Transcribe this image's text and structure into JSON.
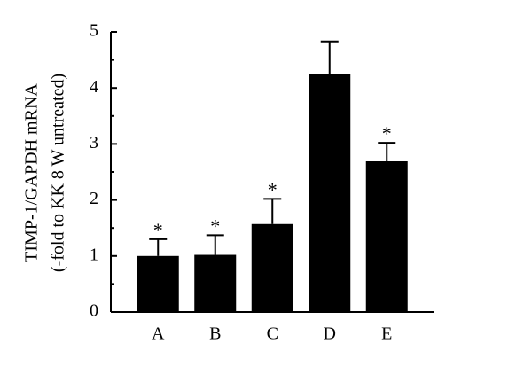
{
  "chart_data": {
    "type": "bar",
    "ylabel": [
      "TIMP-1/GAPDH mRNA",
      "(-fold to KK 8 W untreated)"
    ],
    "categories": [
      "A",
      "B",
      "C",
      "D",
      "E"
    ],
    "values": [
      1.0,
      1.02,
      1.57,
      4.25,
      2.69
    ],
    "errors": [
      0.3,
      0.35,
      0.45,
      0.58,
      0.33
    ],
    "significance": [
      "*",
      "*",
      "*",
      null,
      "*"
    ],
    "color": "#000000",
    "ylim": [
      0,
      5
    ],
    "yticks": [
      0,
      1,
      2,
      3,
      4,
      5
    ]
  }
}
